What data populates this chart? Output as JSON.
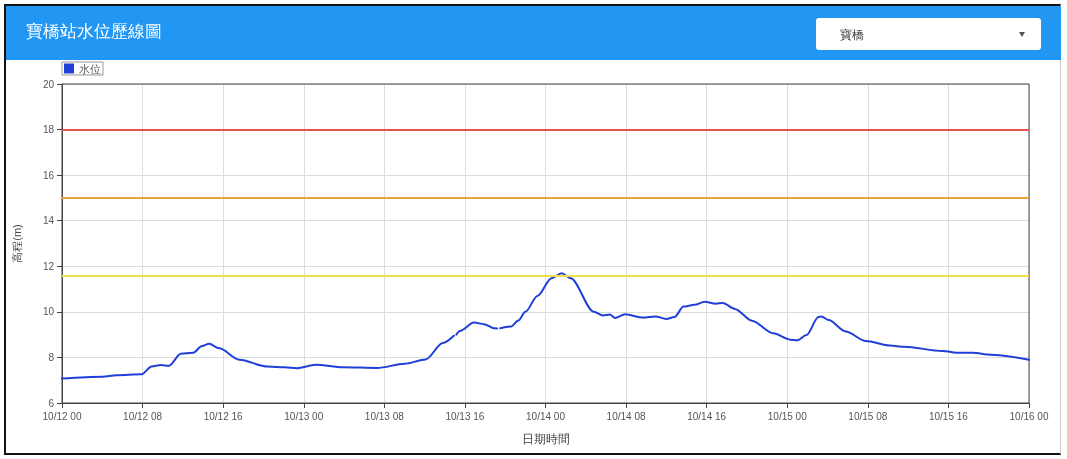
{
  "chart_data": {
    "type": "line",
    "title": "寶橋站水位歷線圖",
    "xlabel": "日期時間",
    "ylabel": "高程(m)",
    "annotations": [
      "寶橋"
    ],
    "x": [
      "--10-12T00:00",
      "--10-12T04:00",
      "--10-12T05:24",
      "--10-12T07:54",
      "--10-12T08:54",
      "--10-12T09:48",
      "--10-12T10:36",
      "--10-12T11:48",
      "--10-12T13:00",
      "--10-12T13:54",
      "--10-12T14:36",
      "--10-12T15:36",
      "--10-12T17:36",
      "--10-12T20:24",
      "--10-12T22:06",
      "--10-12T23:18",
      "--10-13T01:12",
      "--10-13T03:54",
      "--10-13T07:18",
      "--10-13T10:00",
      "--10-13T12:06",
      "--10-13T13:48",
      "--10-13T14:54",
      "--10-13T15:00",
      "--10-13T15:09",
      "--10-13T15:30",
      "--10-13T16:54",
      "--10-13T17:54",
      "--10-13T18:54",
      "--10-13T19:12",
      "--10-13T19:21",
      "--10-13T19:30",
      "--10-13T20:36",
      "--10-13T21:18",
      "--10-13T22:00",
      "--10-13T23:12",
      "--10-14T00:36",
      "--10-14T01:36",
      "--10-14T02:30",
      "--10-14T04:48",
      "--10-14T05:42",
      "--10-14T06:24",
      "--10-14T06:54",
      "--10-14T07:54",
      "--10-14T09:42",
      "--10-14T10:54",
      "--10-14T12:00",
      "--10-14T12:48",
      "--10-14T13:42",
      "--10-14T14:48",
      "--10-14T15:48",
      "--10-14T16:54",
      "--10-14T17:36",
      "--10-14T18:48",
      "--10-14T20:30",
      "--10-14T22:36",
      "--10-15T00:18",
      "--10-15T01:00",
      "--10-15T01:54",
      "--10-15T03:06",
      "--10-15T03:24",
      "--10-15T04:06",
      "--10-15T05:48",
      "--10-15T07:48",
      "--10-15T10:12",
      "--10-15T11:36",
      "--10-15T15:24",
      "--10-15T17:06",
      "--10-15T18:24",
      "--10-15T20:12",
      "--10-16T00:00"
    ],
    "series": [
      {
        "name": "水位",
        "color": "#1f3fd8",
        "values": [
          7.07,
          7.15,
          7.22,
          7.26,
          7.6,
          7.67,
          7.63,
          8.16,
          8.2,
          8.5,
          8.6,
          8.4,
          7.9,
          7.6,
          7.57,
          7.53,
          7.68,
          7.57,
          7.54,
          7.72,
          7.91,
          8.63,
          8.95,
          null,
          9.0,
          9.16,
          9.53,
          9.46,
          9.28,
          9.27,
          null,
          9.28,
          9.36,
          9.62,
          10.0,
          10.7,
          11.48,
          11.69,
          11.48,
          10.0,
          9.84,
          9.88,
          9.73,
          9.89,
          9.75,
          9.8,
          9.69,
          9.77,
          10.23,
          10.31,
          10.44,
          10.36,
          10.39,
          10.13,
          9.61,
          9.06,
          8.78,
          8.75,
          8.98,
          9.77,
          9.8,
          9.64,
          9.14,
          8.72,
          8.52,
          8.47,
          8.28,
          8.2,
          8.2,
          8.12,
          7.9
        ]
      }
    ],
    "xlim": [
      "--10-12T00:00",
      "--10-16T00:00"
    ],
    "xticks": [
      {
        "value": "--10-12T00:00",
        "label": "10/12 00"
      },
      {
        "value": "--10-12T08:00",
        "label": "10/12 08"
      },
      {
        "value": "--10-12T16:00",
        "label": "10/12 16"
      },
      {
        "value": "--10-13T00:00",
        "label": "10/13 00"
      },
      {
        "value": "--10-13T08:00",
        "label": "10/13 08"
      },
      {
        "value": "--10-13T16:00",
        "label": "10/13 16"
      },
      {
        "value": "--10-14T00:00",
        "label": "10/14 00"
      },
      {
        "value": "--10-14T08:00",
        "label": "10/14 08"
      },
      {
        "value": "--10-14T16:00",
        "label": "10/14 16"
      },
      {
        "value": "--10-15T00:00",
        "label": "10/15 00"
      },
      {
        "value": "--10-15T08:00",
        "label": "10/15 08"
      },
      {
        "value": "--10-15T16:00",
        "label": "10/15 16"
      },
      {
        "value": "--10-16T00:00",
        "label": "10/16 00"
      }
    ],
    "ylim": [
      6,
      20
    ],
    "yticks": [
      6,
      8,
      10,
      12,
      14,
      16,
      18,
      20
    ],
    "ref_lines": [
      {
        "axis": "y",
        "value": 18,
        "color": "#e8534a"
      },
      {
        "axis": "y",
        "value": 15,
        "color": "#e8a33a"
      },
      {
        "axis": "y",
        "value": 11.6,
        "color": "#eee04a"
      }
    ],
    "grid": true,
    "legend": "top left",
    "marker": "none",
    "line_style": "solid"
  }
}
